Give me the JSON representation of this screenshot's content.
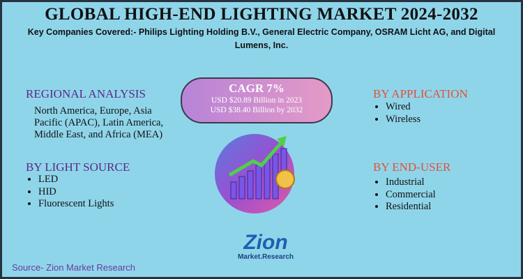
{
  "header": {
    "title": "GLOBAL HIGH-END LIGHTING MARKET 2024-2032",
    "subtitle": "Key Companies Covered:- Philips Lighting Holding B.V., General Electric Company, OSRAM Licht AG, and Digital Lumens, Inc."
  },
  "cagr": {
    "title": "CAGR 7%",
    "lines": [
      "USD $20.89  Billion in 2023",
      "USD $38.40 Billion  by 2032"
    ]
  },
  "regional": {
    "heading": "REGIONAL ANALYSIS",
    "text": "North America, Europe, Asia Pacific (APAC), Latin America, Middle East, and Africa (MEA)"
  },
  "light_source": {
    "heading": "BY LIGHT SOURCE",
    "items": [
      "LED",
      "HID",
      "Fluorescent Lights"
    ]
  },
  "application": {
    "heading": "BY APPLICATION",
    "items": [
      "Wired",
      "Wireless"
    ]
  },
  "end_user": {
    "heading": "BY END-USER",
    "items": [
      "Industrial",
      "Commercial",
      "Residential"
    ]
  },
  "logo": {
    "name": "Zion",
    "tagline": "Market.Research"
  },
  "source": "Source- Zion Market Research"
}
